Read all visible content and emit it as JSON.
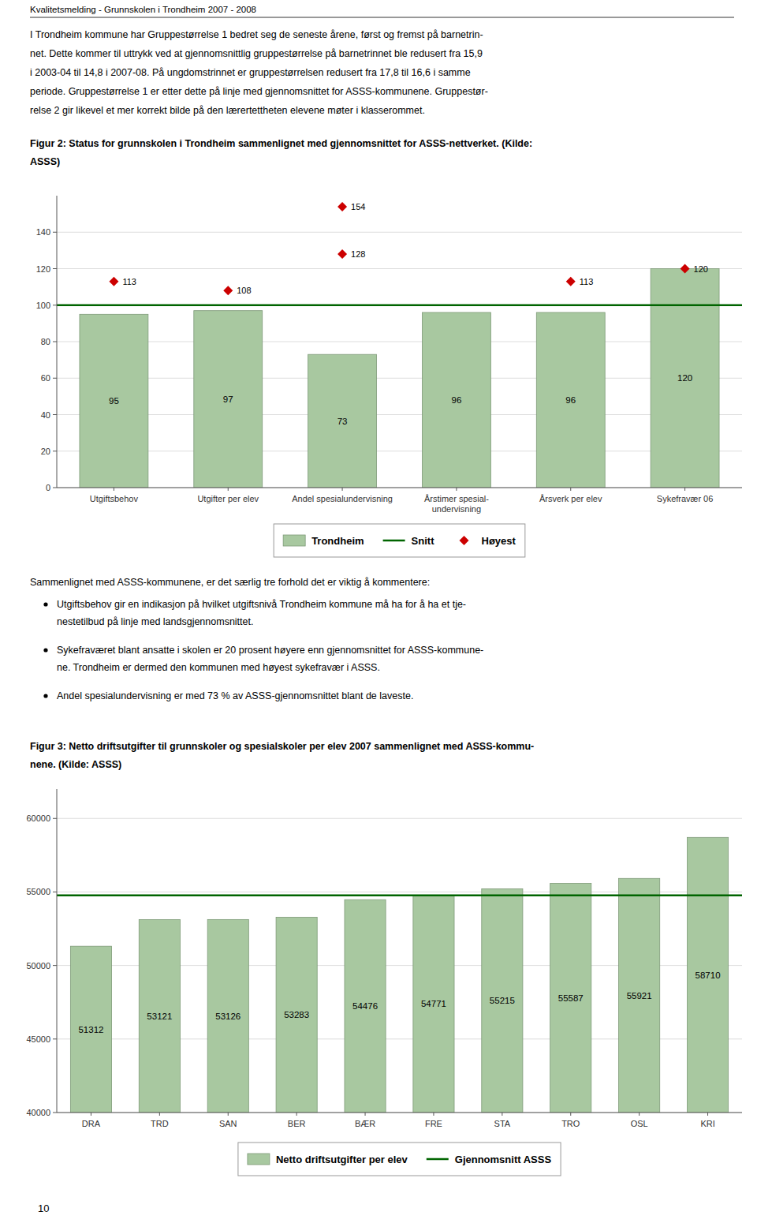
{
  "page_title": "Kvalitetsmelding - Grunnskolen i Trondheim 2007 - 2008",
  "intro": [
    "I Trondheim kommune har Gruppestørrelse 1 bedret seg de seneste årene, først og fremst på barnetrin-",
    "net. Dette kommer til uttrykk ved at gjennomsnittlig gruppestørrelse på barnetrinnet ble redusert fra 15,9",
    "i 2003-04 til 14,8 i 2007-08. På ungdomstrinnet er gruppestørrelsen redusert fra 17,8 til 16,6 i samme",
    "periode. Gruppestørrelse 1 er etter dette på linje med gjennomsnittet for ASSS-kommunene. Gruppestør-",
    "relse 2 gir likevel et mer korrekt bilde på den lærertettheten elevene møter i klasserommet."
  ],
  "bullet_intro": "Sammenlignet med ASSS-kommunene, er det særlig tre forhold det er viktig å kommentere:",
  "bullets": [
    [
      "Utgiftsbehov gir en indikasjon på hvilket utgiftsnivå Trondheim kommune må ha for å ha et tje-",
      "nestetilbud på linje med landsgjennomsnittet."
    ],
    [
      "Sykefraværet blant ansatte i skolen er 20 prosent høyere enn gjennomsnittet for ASSS-kommune-",
      "ne. Trondheim er dermed den kommunen med høyest sykefravær i ASSS."
    ],
    [
      "Andel spesialundervisning er med 73 % av ASSS-gjennomsnittet blant de laveste."
    ]
  ],
  "page_number": "10",
  "chart_data": [
    {
      "type": "bar",
      "title": [
        "Figur 2: Status for grunnskolen i Trondheim sammenlignet med gjennomsnittet for ASSS-nettverket. (Kilde:",
        "ASSS)"
      ],
      "categories": [
        "Utgiftsbehov",
        "Utgifter per elev",
        "Andel spesialundervisning",
        "Årstimer spesial-\nundervisning",
        "Årsverk per elev",
        "Sykefravær 06"
      ],
      "series": [
        {
          "name": "Trondheim",
          "type": "bar",
          "color": "#a8c8a0",
          "values": [
            95,
            97,
            73,
            96,
            96,
            120
          ],
          "data_labels": true
        },
        {
          "name": "Snitt",
          "type": "hline",
          "color": "#006400",
          "value": 100
        },
        {
          "name": "Høyest",
          "type": "scatter",
          "marker": "diamond",
          "color": "#cc0000",
          "values": [
            113,
            108,
            128,
            null,
            113,
            120
          ],
          "data_labels": true
        },
        {
          "name": "Høyest",
          "type": "scatter",
          "marker": "diamond",
          "color": "#cc0000",
          "values": [
            null,
            null,
            154,
            null,
            null,
            null
          ],
          "data_labels": true
        }
      ],
      "ylim": [
        0,
        160
      ],
      "yticks": [
        0,
        20,
        40,
        60,
        80,
        100,
        120,
        140
      ],
      "grid": true,
      "legend": "bottom"
    },
    {
      "type": "bar",
      "title": [
        "Figur 3: Netto driftsutgifter til grunnskoler og spesialskoler per elev 2007 sammenlignet med ASSS-kommu-",
        "nene. (Kilde: ASSS)"
      ],
      "categories": [
        "DRA",
        "TRD",
        "SAN",
        "BER",
        "BÆR",
        "FRE",
        "STA",
        "TRO",
        "OSL",
        "KRI"
      ],
      "series": [
        {
          "name": "Netto driftsutgifter per elev",
          "type": "bar",
          "color": "#a8c8a0",
          "values": [
            51312,
            53121,
            53126,
            53283,
            54476,
            54771,
            55215,
            55587,
            55921,
            58710
          ],
          "data_labels": true
        },
        {
          "name": "Gjennomsnitt ASSS",
          "type": "hline",
          "color": "#006400",
          "value": 54771
        }
      ],
      "ylim": [
        40000,
        62000
      ],
      "yticks": [
        40000,
        45000,
        50000,
        55000,
        60000
      ],
      "grid": true,
      "legend": "bottom"
    }
  ]
}
